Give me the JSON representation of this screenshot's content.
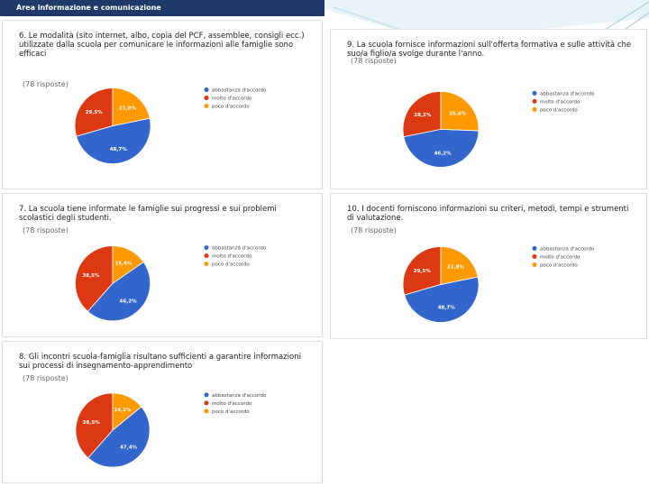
{
  "header": {
    "title": "Area informazione e comunicazione"
  },
  "chart_data": [
    {
      "type": "pie",
      "title": "6. Le modalità (sito internet, albo, copia del PCF, assemblee, consigli ecc.) utilizzate dalla scuola per comunicare le informazioni alle famiglie sono efficaci",
      "subtitle": "(78 risposte)",
      "categories": [
        "abbastanza d'accordo",
        "molto d'accordo",
        "poco d'accordo"
      ],
      "values": [
        48.7,
        29.5,
        21.8
      ],
      "value_labels": [
        "48,7%",
        "29,5%",
        "21,8%"
      ],
      "colors": [
        "#3366cc",
        "#dc3912",
        "#ff9900"
      ]
    },
    {
      "type": "pie",
      "title": "7. La scuola tiene informate le famiglie sui progressi e sui problemi scolastici degli studenti.",
      "subtitle": "(78 risposte)",
      "categories": [
        "abbastanza d'accordo",
        "molto d'accordo",
        "poco d'accordo"
      ],
      "values": [
        46.2,
        38.5,
        15.4
      ],
      "value_labels": [
        "46,2%",
        "38,5%",
        "15,4%"
      ],
      "colors": [
        "#3366cc",
        "#dc3912",
        "#ff9900"
      ]
    },
    {
      "type": "pie",
      "title": "8. Gli incontri scuola-famiglia risultano sufficienti a garantire informazioni sui processi di insegnamento-apprendimento",
      "subtitle": "(78 risposte)",
      "categories": [
        "abbastanza d'accordo",
        "molto d'accordo",
        "poco d'accordo"
      ],
      "values": [
        47.4,
        38.5,
        14.1
      ],
      "value_labels": [
        "47,4%",
        "38,5%",
        "14,1%"
      ],
      "colors": [
        "#3366cc",
        "#dc3912",
        "#ff9900"
      ]
    },
    {
      "type": "pie",
      "title": "9. La scuola fornisce informazioni sull'offerta formativa e sulle attività che suo/a figlio/a svolge durante l'anno.",
      "subtitle": "(78 risposte)",
      "categories": [
        "abbastanza d'accordo",
        "molto d'accordo",
        "poco d'accordo"
      ],
      "values": [
        46.2,
        28.2,
        25.6
      ],
      "value_labels": [
        "46,2%",
        "28,2%",
        "25,6%"
      ],
      "colors": [
        "#3366cc",
        "#dc3912",
        "#ff9900"
      ]
    },
    {
      "type": "pie",
      "title": "10. I docenti forniscono informazioni su criteri, metodi, tempi e strumenti di valutazione.",
      "subtitle": "(78 risposte)",
      "categories": [
        "abbastanza d'accordo",
        "molto d'accordo",
        "poco d'accordo"
      ],
      "values": [
        48.7,
        29.5,
        21.8
      ],
      "value_labels": [
        "48,7%",
        "29,5%",
        "21,8%"
      ],
      "colors": [
        "#3366cc",
        "#dc3912",
        "#ff9900"
      ]
    }
  ]
}
